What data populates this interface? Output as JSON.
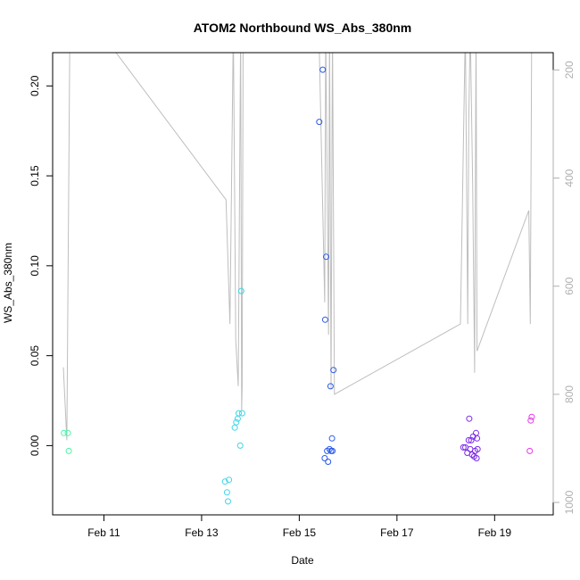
{
  "chart_data": {
    "type": "scatter",
    "title": "ATOM2 Northbound WS_Abs_380nm",
    "xlabel": "Date",
    "ylabel": "WS_Abs_380nm",
    "x_unit": "days in February",
    "xlim": [
      9.95,
      20.2
    ],
    "ylim": [
      -0.0385,
      0.2185
    ],
    "x_ticks": [
      {
        "value": 11,
        "label": "Feb 11"
      },
      {
        "value": 13,
        "label": "Feb 13"
      },
      {
        "value": 15,
        "label": "Feb 15"
      },
      {
        "value": 17,
        "label": "Feb 17"
      },
      {
        "value": 19,
        "label": "Feb 19"
      }
    ],
    "y_ticks": [
      {
        "value": 0.0,
        "label": "0.00"
      },
      {
        "value": 0.05,
        "label": "0.05"
      },
      {
        "value": 0.1,
        "label": "0.10"
      },
      {
        "value": 0.15,
        "label": "0.15"
      },
      {
        "value": 0.2,
        "label": "0.20"
      }
    ],
    "y2_ticks": [
      {
        "value": 200,
        "label": "200"
      },
      {
        "value": 400,
        "label": "400"
      },
      {
        "value": 600,
        "label": "600"
      },
      {
        "value": 800,
        "label": "800"
      },
      {
        "value": 1000,
        "label": "1000"
      }
    ],
    "y2_lim_top_to_bottom": [
      168,
      1023
    ],
    "y2_reversed": true,
    "grid": false,
    "legend": "none",
    "colors": {
      "line": "#bebebe",
      "axis": "#000000",
      "right_axis": "#b0b0b0",
      "point_palette": [
        "#4df2a8",
        "#3fd5e6",
        "#2a5ae8",
        "#7c2ae8",
        "#e43ae6"
      ]
    },
    "points": [
      {
        "x": 10.18,
        "y": 0.007,
        "c": 0
      },
      {
        "x": 10.26,
        "y": 0.007,
        "c": 0
      },
      {
        "x": 10.28,
        "y": -0.003,
        "c": 0
      },
      {
        "x": 13.48,
        "y": -0.02,
        "c": 1
      },
      {
        "x": 13.52,
        "y": -0.026,
        "c": 1
      },
      {
        "x": 13.54,
        "y": -0.031,
        "c": 1
      },
      {
        "x": 13.56,
        "y": -0.019,
        "c": 1
      },
      {
        "x": 13.68,
        "y": 0.01,
        "c": 1
      },
      {
        "x": 13.71,
        "y": 0.013,
        "c": 1
      },
      {
        "x": 13.74,
        "y": 0.015,
        "c": 1
      },
      {
        "x": 13.76,
        "y": 0.018,
        "c": 1
      },
      {
        "x": 13.79,
        "y": 0.0,
        "c": 1
      },
      {
        "x": 13.81,
        "y": 0.086,
        "c": 1
      },
      {
        "x": 13.83,
        "y": 0.018,
        "c": 1
      },
      {
        "x": 15.41,
        "y": 0.18,
        "c": 2
      },
      {
        "x": 15.48,
        "y": 0.209,
        "c": 2
      },
      {
        "x": 15.52,
        "y": -0.007,
        "c": 2
      },
      {
        "x": 15.53,
        "y": 0.07,
        "c": 2
      },
      {
        "x": 15.55,
        "y": 0.105,
        "c": 2
      },
      {
        "x": 15.57,
        "y": -0.003,
        "c": 2
      },
      {
        "x": 15.59,
        "y": -0.009,
        "c": 2
      },
      {
        "x": 15.62,
        "y": -0.002,
        "c": 2
      },
      {
        "x": 15.64,
        "y": 0.033,
        "c": 2
      },
      {
        "x": 15.65,
        "y": -0.003,
        "c": 2
      },
      {
        "x": 15.67,
        "y": 0.004,
        "c": 2
      },
      {
        "x": 15.68,
        "y": -0.003,
        "c": 2
      },
      {
        "x": 15.7,
        "y": 0.042,
        "c": 2
      },
      {
        "x": 18.36,
        "y": -0.001,
        "c": 3
      },
      {
        "x": 18.4,
        "y": -0.001,
        "c": 3
      },
      {
        "x": 18.44,
        "y": -0.004,
        "c": 3
      },
      {
        "x": 18.47,
        "y": 0.003,
        "c": 3
      },
      {
        "x": 18.48,
        "y": 0.015,
        "c": 3
      },
      {
        "x": 18.5,
        "y": -0.002,
        "c": 3
      },
      {
        "x": 18.52,
        "y": 0.003,
        "c": 3
      },
      {
        "x": 18.54,
        "y": -0.005,
        "c": 3
      },
      {
        "x": 18.56,
        "y": 0.005,
        "c": 3
      },
      {
        "x": 18.58,
        "y": -0.006,
        "c": 3
      },
      {
        "x": 18.6,
        "y": -0.003,
        "c": 3
      },
      {
        "x": 18.62,
        "y": 0.007,
        "c": 3
      },
      {
        "x": 18.63,
        "y": -0.007,
        "c": 3
      },
      {
        "x": 18.64,
        "y": 0.004,
        "c": 3
      },
      {
        "x": 18.65,
        "y": -0.002,
        "c": 3
      },
      {
        "x": 19.72,
        "y": -0.003,
        "c": 4
      },
      {
        "x": 19.74,
        "y": 0.014,
        "c": 4
      },
      {
        "x": 19.76,
        "y": 0.016,
        "c": 4
      }
    ],
    "line_series": {
      "axis": "right",
      "points": [
        [
          10.17,
          750
        ],
        [
          10.24,
          885
        ],
        [
          10.3,
          150
        ],
        [
          10.5,
          150
        ],
        [
          11.0,
          150
        ],
        [
          11.1,
          150
        ],
        [
          13.5,
          440
        ],
        [
          13.58,
          670
        ],
        [
          13.65,
          120
        ],
        [
          13.7,
          700
        ],
        [
          13.75,
          785
        ],
        [
          13.8,
          120
        ],
        [
          13.82,
          830
        ],
        [
          13.83,
          785
        ],
        [
          13.85,
          120
        ],
        [
          15.4,
          120
        ],
        [
          15.52,
          630
        ],
        [
          15.54,
          120
        ],
        [
          15.6,
          690
        ],
        [
          15.62,
          120
        ],
        [
          15.65,
          790
        ],
        [
          15.68,
          120
        ],
        [
          15.72,
          800
        ],
        [
          18.3,
          670
        ],
        [
          18.4,
          120
        ],
        [
          18.45,
          670
        ],
        [
          18.47,
          300
        ],
        [
          18.5,
          120
        ],
        [
          18.55,
          410
        ],
        [
          18.59,
          760
        ],
        [
          18.62,
          120
        ],
        [
          18.64,
          720
        ],
        [
          19.7,
          460
        ],
        [
          19.73,
          670
        ],
        [
          19.76,
          120
        ]
      ]
    }
  }
}
